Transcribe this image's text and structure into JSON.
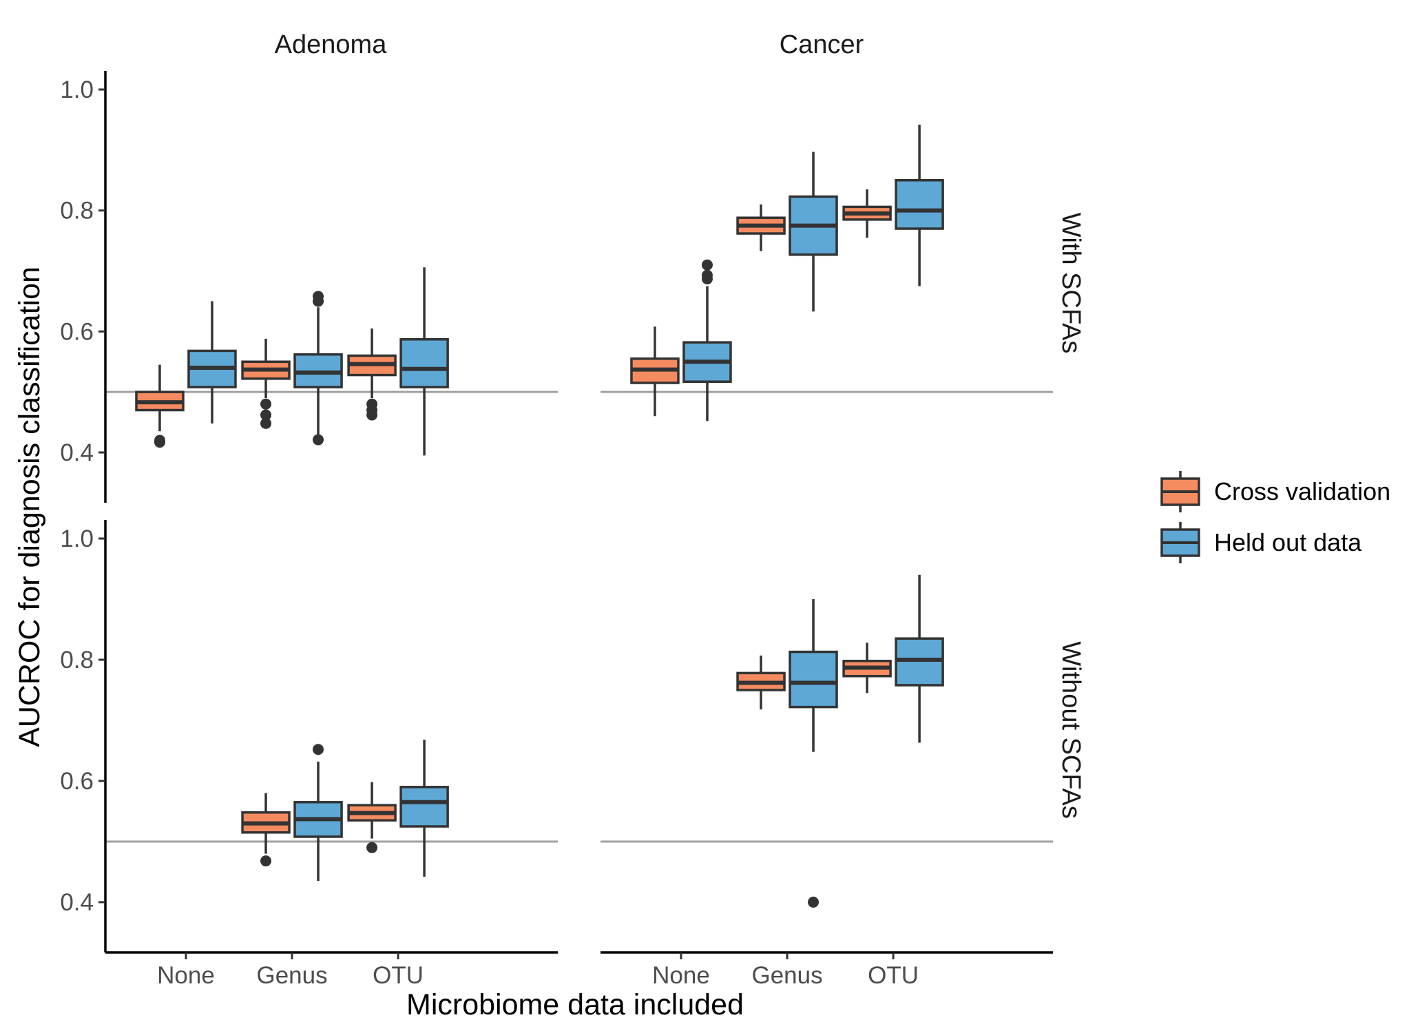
{
  "chart_data": {
    "type": "boxplot",
    "xlabel": "Microbiome data included",
    "ylabel": "AUCROC for diagnosis classification",
    "column_facets": [
      "Adenoma",
      "Cancer"
    ],
    "row_facets": [
      "With SCFAs",
      "Without SCFAs"
    ],
    "categories": [
      "None",
      "Genus",
      "OTU"
    ],
    "ylim": [
      0.37,
      1.03
    ],
    "yticks": [
      "0.4",
      "0.6",
      "0.8",
      "1.0"
    ],
    "reference_line": 0.5,
    "grid": false,
    "legend_position": "right",
    "series": [
      {
        "name": "Cross validation",
        "color": "#F58B60"
      },
      {
        "name": "Held out data",
        "color": "#5EA8D6"
      }
    ],
    "panels": [
      {
        "row": "With SCFAs",
        "col": "Adenoma",
        "boxes": [
          {
            "category": "None",
            "series": "Cross validation",
            "min": 0.435,
            "q1": 0.47,
            "median": 0.483,
            "q3": 0.5,
            "max": 0.545,
            "outliers": [
              0.42,
              0.417
            ]
          },
          {
            "category": "None",
            "series": "Held out data",
            "min": 0.448,
            "q1": 0.508,
            "median": 0.54,
            "q3": 0.568,
            "max": 0.65,
            "outliers": []
          },
          {
            "category": "Genus",
            "series": "Cross validation",
            "min": 0.49,
            "q1": 0.522,
            "median": 0.537,
            "q3": 0.55,
            "max": 0.588,
            "outliers": [
              0.48,
              0.462,
              0.448
            ]
          },
          {
            "category": "Genus",
            "series": "Held out data",
            "min": 0.43,
            "q1": 0.508,
            "median": 0.532,
            "q3": 0.562,
            "max": 0.64,
            "outliers": [
              0.658,
              0.65,
              0.421
            ]
          },
          {
            "category": "OTU",
            "series": "Cross validation",
            "min": 0.49,
            "q1": 0.528,
            "median": 0.546,
            "q3": 0.56,
            "max": 0.605,
            "outliers": [
              0.48,
              0.47,
              0.462
            ]
          },
          {
            "category": "OTU",
            "series": "Held out data",
            "min": 0.395,
            "q1": 0.508,
            "median": 0.538,
            "q3": 0.587,
            "max": 0.706,
            "outliers": []
          }
        ]
      },
      {
        "row": "With SCFAs",
        "col": "Cancer",
        "boxes": [
          {
            "category": "None",
            "series": "Cross validation",
            "min": 0.46,
            "q1": 0.515,
            "median": 0.537,
            "q3": 0.555,
            "max": 0.608,
            "outliers": []
          },
          {
            "category": "None",
            "series": "Held out data",
            "min": 0.452,
            "q1": 0.517,
            "median": 0.55,
            "q3": 0.582,
            "max": 0.675,
            "outliers": [
              0.71,
              0.693,
              0.687
            ]
          },
          {
            "category": "Genus",
            "series": "Cross validation",
            "min": 0.733,
            "q1": 0.762,
            "median": 0.775,
            "q3": 0.788,
            "max": 0.81,
            "outliers": []
          },
          {
            "category": "Genus",
            "series": "Held out data",
            "min": 0.633,
            "q1": 0.727,
            "median": 0.775,
            "q3": 0.823,
            "max": 0.897,
            "outliers": []
          },
          {
            "category": "OTU",
            "series": "Cross validation",
            "min": 0.755,
            "q1": 0.785,
            "median": 0.795,
            "q3": 0.806,
            "max": 0.835,
            "outliers": []
          },
          {
            "category": "OTU",
            "series": "Held out data",
            "min": 0.675,
            "q1": 0.77,
            "median": 0.8,
            "q3": 0.85,
            "max": 0.942,
            "outliers": []
          }
        ]
      },
      {
        "row": "Without SCFAs",
        "col": "Adenoma",
        "boxes": [
          {
            "category": "Genus",
            "series": "Cross validation",
            "min": 0.48,
            "q1": 0.515,
            "median": 0.53,
            "q3": 0.548,
            "max": 0.58,
            "outliers": [
              0.468
            ]
          },
          {
            "category": "Genus",
            "series": "Held out data",
            "min": 0.435,
            "q1": 0.508,
            "median": 0.537,
            "q3": 0.565,
            "max": 0.632,
            "outliers": [
              0.652
            ]
          },
          {
            "category": "OTU",
            "series": "Cross validation",
            "min": 0.505,
            "q1": 0.535,
            "median": 0.547,
            "q3": 0.56,
            "max": 0.598,
            "outliers": [
              0.49
            ]
          },
          {
            "category": "OTU",
            "series": "Held out data",
            "min": 0.442,
            "q1": 0.525,
            "median": 0.565,
            "q3": 0.59,
            "max": 0.668,
            "outliers": []
          }
        ]
      },
      {
        "row": "Without SCFAs",
        "col": "Cancer",
        "boxes": [
          {
            "category": "Genus",
            "series": "Cross validation",
            "min": 0.718,
            "q1": 0.75,
            "median": 0.762,
            "q3": 0.778,
            "max": 0.807,
            "outliers": []
          },
          {
            "category": "Genus",
            "series": "Held out data",
            "min": 0.648,
            "q1": 0.722,
            "median": 0.762,
            "q3": 0.813,
            "max": 0.9,
            "outliers": [
              0.4
            ]
          },
          {
            "category": "OTU",
            "series": "Cross validation",
            "min": 0.745,
            "q1": 0.773,
            "median": 0.787,
            "q3": 0.798,
            "max": 0.828,
            "outliers": []
          },
          {
            "category": "OTU",
            "series": "Held out data",
            "min": 0.663,
            "q1": 0.758,
            "median": 0.8,
            "q3": 0.835,
            "max": 0.94,
            "outliers": []
          }
        ]
      }
    ]
  }
}
